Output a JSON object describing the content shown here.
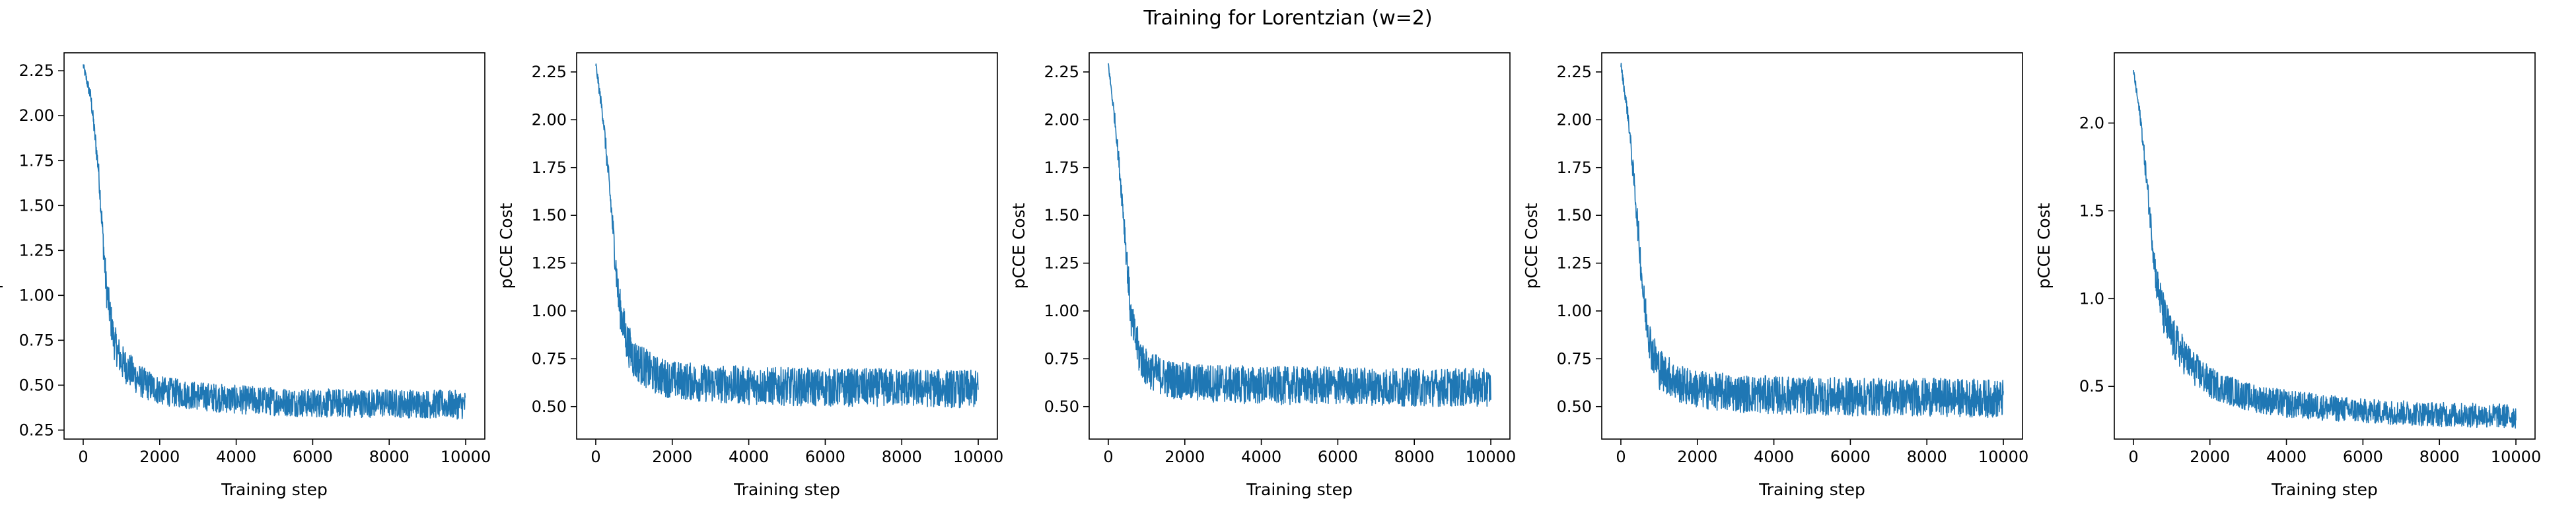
{
  "figure": {
    "title": "Training for Lorentzian (w=2)"
  },
  "style": {
    "line_color": "#1f77b4"
  },
  "chart_data": [
    {
      "type": "line",
      "xlabel": "Training step",
      "ylabel": "pCCE Cost",
      "xlim": [
        -500,
        10500
      ],
      "ylim": [
        0.2,
        2.35
      ],
      "xticks": [
        0,
        2000,
        4000,
        6000,
        8000,
        10000
      ],
      "xtick_labels": [
        "0",
        "2000",
        "4000",
        "6000",
        "8000",
        "10000"
      ],
      "yticks": [
        0.25,
        0.5,
        0.75,
        1.0,
        1.25,
        1.5,
        1.75,
        2.0,
        2.25
      ],
      "ytick_labels": [
        "0.25",
        "0.50",
        "0.75",
        "1.00",
        "1.25",
        "1.50",
        "1.75",
        "2.00",
        "2.25"
      ],
      "series": [
        {
          "x": [
            0,
            200,
            400,
            600,
            800,
            1000,
            1500,
            2000,
            3000,
            4000,
            6000,
            8000,
            10000
          ],
          "y": [
            2.28,
            2.1,
            1.7,
            1.05,
            0.75,
            0.63,
            0.52,
            0.47,
            0.44,
            0.42,
            0.4,
            0.4,
            0.39
          ],
          "band": [
            0.02,
            0.04,
            0.06,
            0.1,
            0.1,
            0.1,
            0.09,
            0.08,
            0.08,
            0.08,
            0.08,
            0.08,
            0.08
          ]
        }
      ]
    },
    {
      "type": "line",
      "xlabel": "Training step",
      "ylabel": "pCCE Cost",
      "xlim": [
        -500,
        10500
      ],
      "ylim": [
        0.33,
        2.35
      ],
      "xticks": [
        0,
        2000,
        4000,
        6000,
        8000,
        10000
      ],
      "xtick_labels": [
        "0",
        "2000",
        "4000",
        "6000",
        "8000",
        "10000"
      ],
      "yticks": [
        0.5,
        0.75,
        1.0,
        1.25,
        1.5,
        1.75,
        2.0,
        2.25
      ],
      "ytick_labels": [
        "0.50",
        "0.75",
        "1.00",
        "1.25",
        "1.50",
        "1.75",
        "2.00",
        "2.25"
      ],
      "series": [
        {
          "x": [
            0,
            200,
            400,
            600,
            800,
            1000,
            1500,
            2000,
            3000,
            4000,
            6000,
            8000,
            10000
          ],
          "y": [
            2.29,
            2.0,
            1.55,
            1.05,
            0.85,
            0.75,
            0.67,
            0.64,
            0.62,
            0.61,
            0.6,
            0.6,
            0.59
          ],
          "band": [
            0.02,
            0.04,
            0.07,
            0.1,
            0.11,
            0.11,
            0.1,
            0.1,
            0.1,
            0.1,
            0.1,
            0.1,
            0.1
          ]
        }
      ]
    },
    {
      "type": "line",
      "xlabel": "Training step",
      "ylabel": "pCCE Cost",
      "xlim": [
        -500,
        10500
      ],
      "ylim": [
        0.33,
        2.35
      ],
      "xticks": [
        0,
        2000,
        4000,
        6000,
        8000,
        10000
      ],
      "xtick_labels": [
        "0",
        "2000",
        "4000",
        "6000",
        "8000",
        "10000"
      ],
      "yticks": [
        0.5,
        0.75,
        1.0,
        1.25,
        1.5,
        1.75,
        2.0,
        2.25
      ],
      "ytick_labels": [
        "0.50",
        "0.75",
        "1.00",
        "1.25",
        "1.50",
        "1.75",
        "2.00",
        "2.25"
      ],
      "series": [
        {
          "x": [
            0,
            200,
            400,
            600,
            800,
            1000,
            1500,
            2000,
            3000,
            4000,
            6000,
            8000,
            10000
          ],
          "y": [
            2.29,
            1.95,
            1.5,
            0.95,
            0.78,
            0.7,
            0.65,
            0.63,
            0.62,
            0.61,
            0.61,
            0.6,
            0.6
          ],
          "band": [
            0.02,
            0.04,
            0.07,
            0.1,
            0.11,
            0.1,
            0.1,
            0.1,
            0.1,
            0.1,
            0.1,
            0.1,
            0.1
          ]
        }
      ]
    },
    {
      "type": "line",
      "xlabel": "Training step",
      "ylabel": "pCCE Cost",
      "xlim": [
        -500,
        10500
      ],
      "ylim": [
        0.33,
        2.35
      ],
      "xticks": [
        0,
        2000,
        4000,
        6000,
        8000,
        10000
      ],
      "xtick_labels": [
        "0",
        "2000",
        "4000",
        "6000",
        "8000",
        "10000"
      ],
      "yticks": [
        0.5,
        0.75,
        1.0,
        1.25,
        1.5,
        1.75,
        2.0,
        2.25
      ],
      "ytick_labels": [
        "0.50",
        "0.75",
        "1.00",
        "1.25",
        "1.50",
        "1.75",
        "2.00",
        "2.25"
      ],
      "series": [
        {
          "x": [
            0,
            200,
            400,
            600,
            800,
            1000,
            1500,
            2000,
            3000,
            4000,
            6000,
            8000,
            10000
          ],
          "y": [
            2.29,
            2.0,
            1.55,
            1.05,
            0.8,
            0.7,
            0.62,
            0.59,
            0.57,
            0.56,
            0.55,
            0.55,
            0.54
          ],
          "band": [
            0.02,
            0.04,
            0.07,
            0.1,
            0.11,
            0.11,
            0.1,
            0.1,
            0.1,
            0.1,
            0.1,
            0.1,
            0.1
          ]
        }
      ]
    },
    {
      "type": "line",
      "xlabel": "Training step",
      "ylabel": "pCCE Cost",
      "xlim": [
        -500,
        10500
      ],
      "ylim": [
        0.2,
        2.4
      ],
      "xticks": [
        0,
        2000,
        4000,
        6000,
        8000,
        10000
      ],
      "xtick_labels": [
        "0",
        "2000",
        "4000",
        "6000",
        "8000",
        "10000"
      ],
      "yticks": [
        0.5,
        1.0,
        1.5,
        2.0
      ],
      "ytick_labels": [
        "0.5",
        "1.0",
        "1.5",
        "2.0"
      ],
      "series": [
        {
          "x": [
            0,
            200,
            400,
            600,
            800,
            1000,
            1500,
            2000,
            3000,
            4000,
            6000,
            8000,
            10000
          ],
          "y": [
            2.3,
            2.0,
            1.55,
            1.1,
            0.9,
            0.78,
            0.62,
            0.52,
            0.44,
            0.4,
            0.36,
            0.34,
            0.33
          ],
          "band": [
            0.02,
            0.04,
            0.07,
            0.1,
            0.12,
            0.12,
            0.1,
            0.09,
            0.08,
            0.08,
            0.07,
            0.07,
            0.07
          ]
        }
      ]
    }
  ]
}
